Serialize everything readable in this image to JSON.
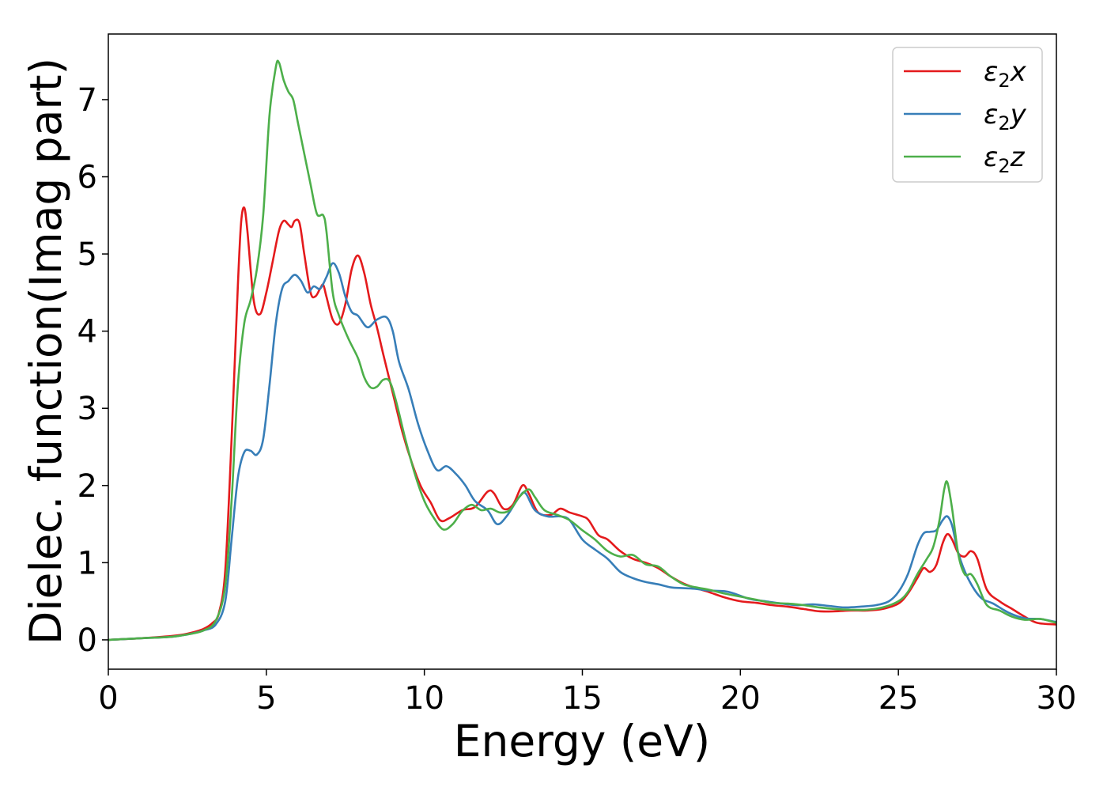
{
  "chart_data": {
    "type": "line",
    "xlabel": "Energy (eV)",
    "ylabel": "Dielec. function(Imag part)",
    "xlim": [
      0,
      30
    ],
    "ylim": [
      -0.38,
      7.85
    ],
    "xticks": [
      0,
      5,
      10,
      15,
      20,
      25,
      30
    ],
    "yticks": [
      0,
      1,
      2,
      3,
      4,
      5,
      6,
      7
    ],
    "grid": false,
    "legend_position": "top-right",
    "series": [
      {
        "name": "ε₂x",
        "legend": {
          "base": "ε",
          "sub": "2",
          "var": "x"
        },
        "color": "#e41a1c",
        "points": [
          [
            0,
            0
          ],
          [
            1,
            0.02
          ],
          [
            2,
            0.05
          ],
          [
            2.5,
            0.08
          ],
          [
            3,
            0.14
          ],
          [
            3.3,
            0.22
          ],
          [
            3.5,
            0.35
          ],
          [
            3.7,
            0.9
          ],
          [
            3.9,
            2.6
          ],
          [
            4.1,
            4.6
          ],
          [
            4.2,
            5.4
          ],
          [
            4.3,
            5.6
          ],
          [
            4.4,
            5.3
          ],
          [
            4.6,
            4.4
          ],
          [
            4.8,
            4.22
          ],
          [
            5.0,
            4.5
          ],
          [
            5.2,
            4.9
          ],
          [
            5.4,
            5.3
          ],
          [
            5.55,
            5.43
          ],
          [
            5.7,
            5.38
          ],
          [
            5.8,
            5.35
          ],
          [
            5.9,
            5.43
          ],
          [
            6.05,
            5.4
          ],
          [
            6.2,
            5.0
          ],
          [
            6.4,
            4.5
          ],
          [
            6.55,
            4.45
          ],
          [
            6.7,
            4.55
          ],
          [
            6.8,
            4.6
          ],
          [
            6.9,
            4.45
          ],
          [
            7.1,
            4.15
          ],
          [
            7.3,
            4.1
          ],
          [
            7.5,
            4.35
          ],
          [
            7.7,
            4.8
          ],
          [
            7.9,
            4.98
          ],
          [
            8.1,
            4.75
          ],
          [
            8.3,
            4.35
          ],
          [
            8.5,
            4.05
          ],
          [
            8.7,
            3.7
          ],
          [
            9.0,
            3.2
          ],
          [
            9.3,
            2.7
          ],
          [
            9.6,
            2.3
          ],
          [
            9.9,
            1.98
          ],
          [
            10.2,
            1.78
          ],
          [
            10.5,
            1.55
          ],
          [
            10.8,
            1.58
          ],
          [
            11.2,
            1.68
          ],
          [
            11.6,
            1.72
          ],
          [
            12.0,
            1.92
          ],
          [
            12.2,
            1.9
          ],
          [
            12.5,
            1.7
          ],
          [
            12.8,
            1.75
          ],
          [
            13.1,
            2.0
          ],
          [
            13.3,
            1.9
          ],
          [
            13.6,
            1.65
          ],
          [
            14.0,
            1.62
          ],
          [
            14.3,
            1.7
          ],
          [
            14.6,
            1.65
          ],
          [
            15.0,
            1.6
          ],
          [
            15.2,
            1.55
          ],
          [
            15.5,
            1.36
          ],
          [
            15.8,
            1.3
          ],
          [
            16.2,
            1.15
          ],
          [
            16.6,
            1.05
          ],
          [
            17.0,
            1.0
          ],
          [
            17.4,
            0.93
          ],
          [
            17.8,
            0.82
          ],
          [
            18.2,
            0.73
          ],
          [
            18.6,
            0.67
          ],
          [
            19.0,
            0.62
          ],
          [
            19.5,
            0.55
          ],
          [
            20.0,
            0.5
          ],
          [
            20.5,
            0.48
          ],
          [
            21.0,
            0.45
          ],
          [
            21.5,
            0.43
          ],
          [
            22.0,
            0.4
          ],
          [
            22.5,
            0.37
          ],
          [
            23.0,
            0.37
          ],
          [
            23.5,
            0.38
          ],
          [
            24.0,
            0.38
          ],
          [
            24.5,
            0.4
          ],
          [
            25.0,
            0.47
          ],
          [
            25.3,
            0.6
          ],
          [
            25.6,
            0.8
          ],
          [
            25.8,
            0.93
          ],
          [
            26.0,
            0.88
          ],
          [
            26.2,
            0.97
          ],
          [
            26.4,
            1.25
          ],
          [
            26.55,
            1.37
          ],
          [
            26.7,
            1.3
          ],
          [
            26.9,
            1.12
          ],
          [
            27.1,
            1.08
          ],
          [
            27.3,
            1.15
          ],
          [
            27.5,
            1.05
          ],
          [
            27.8,
            0.65
          ],
          [
            28.2,
            0.5
          ],
          [
            28.6,
            0.4
          ],
          [
            29.0,
            0.3
          ],
          [
            29.4,
            0.22
          ],
          [
            30.0,
            0.2
          ]
        ]
      },
      {
        "name": "ε₂y",
        "legend": {
          "base": "ε",
          "sub": "2",
          "var": "y"
        },
        "color": "#377eb8",
        "points": [
          [
            0,
            0
          ],
          [
            1,
            0.02
          ],
          [
            2,
            0.04
          ],
          [
            2.5,
            0.07
          ],
          [
            3,
            0.12
          ],
          [
            3.4,
            0.2
          ],
          [
            3.7,
            0.5
          ],
          [
            3.9,
            1.3
          ],
          [
            4.1,
            2.1
          ],
          [
            4.3,
            2.43
          ],
          [
            4.5,
            2.45
          ],
          [
            4.7,
            2.4
          ],
          [
            4.9,
            2.6
          ],
          [
            5.1,
            3.3
          ],
          [
            5.3,
            4.1
          ],
          [
            5.5,
            4.55
          ],
          [
            5.7,
            4.65
          ],
          [
            5.9,
            4.73
          ],
          [
            6.1,
            4.65
          ],
          [
            6.3,
            4.5
          ],
          [
            6.5,
            4.58
          ],
          [
            6.7,
            4.55
          ],
          [
            6.9,
            4.7
          ],
          [
            7.1,
            4.88
          ],
          [
            7.3,
            4.75
          ],
          [
            7.5,
            4.45
          ],
          [
            7.7,
            4.25
          ],
          [
            7.9,
            4.2
          ],
          [
            8.2,
            4.05
          ],
          [
            8.5,
            4.15
          ],
          [
            8.8,
            4.18
          ],
          [
            9.0,
            4.0
          ],
          [
            9.2,
            3.6
          ],
          [
            9.5,
            3.25
          ],
          [
            9.8,
            2.8
          ],
          [
            10.1,
            2.45
          ],
          [
            10.4,
            2.2
          ],
          [
            10.7,
            2.25
          ],
          [
            11.0,
            2.15
          ],
          [
            11.3,
            2.0
          ],
          [
            11.6,
            1.8
          ],
          [
            12.0,
            1.68
          ],
          [
            12.3,
            1.5
          ],
          [
            12.6,
            1.6
          ],
          [
            13.0,
            1.85
          ],
          [
            13.2,
            1.9
          ],
          [
            13.5,
            1.68
          ],
          [
            13.9,
            1.6
          ],
          [
            14.3,
            1.6
          ],
          [
            14.6,
            1.55
          ],
          [
            15.0,
            1.3
          ],
          [
            15.4,
            1.17
          ],
          [
            15.8,
            1.05
          ],
          [
            16.2,
            0.88
          ],
          [
            16.6,
            0.8
          ],
          [
            17.0,
            0.75
          ],
          [
            17.4,
            0.72
          ],
          [
            17.8,
            0.68
          ],
          [
            18.2,
            0.67
          ],
          [
            18.6,
            0.66
          ],
          [
            19.0,
            0.64
          ],
          [
            19.5,
            0.63
          ],
          [
            19.8,
            0.6
          ],
          [
            20.3,
            0.53
          ],
          [
            20.8,
            0.5
          ],
          [
            21.3,
            0.47
          ],
          [
            21.8,
            0.45
          ],
          [
            22.3,
            0.46
          ],
          [
            22.8,
            0.44
          ],
          [
            23.3,
            0.42
          ],
          [
            23.8,
            0.43
          ],
          [
            24.3,
            0.45
          ],
          [
            24.7,
            0.5
          ],
          [
            25.0,
            0.62
          ],
          [
            25.3,
            0.85
          ],
          [
            25.6,
            1.22
          ],
          [
            25.8,
            1.38
          ],
          [
            26.0,
            1.4
          ],
          [
            26.2,
            1.42
          ],
          [
            26.4,
            1.55
          ],
          [
            26.55,
            1.6
          ],
          [
            26.7,
            1.48
          ],
          [
            26.9,
            1.12
          ],
          [
            27.2,
            0.8
          ],
          [
            27.6,
            0.55
          ],
          [
            28.0,
            0.47
          ],
          [
            28.5,
            0.35
          ],
          [
            29.0,
            0.28
          ],
          [
            29.5,
            0.27
          ],
          [
            30.0,
            0.23
          ]
        ]
      },
      {
        "name": "ε₂z",
        "legend": {
          "base": "ε",
          "sub": "2",
          "var": "z"
        },
        "color": "#4daf4a",
        "points": [
          [
            0,
            0
          ],
          [
            1,
            0.02
          ],
          [
            2,
            0.04
          ],
          [
            2.5,
            0.07
          ],
          [
            3,
            0.12
          ],
          [
            3.4,
            0.25
          ],
          [
            3.7,
            0.7
          ],
          [
            3.9,
            1.8
          ],
          [
            4.1,
            3.3
          ],
          [
            4.3,
            4.1
          ],
          [
            4.5,
            4.4
          ],
          [
            4.7,
            4.8
          ],
          [
            4.9,
            5.5
          ],
          [
            5.1,
            6.8
          ],
          [
            5.3,
            7.42
          ],
          [
            5.4,
            7.48
          ],
          [
            5.55,
            7.25
          ],
          [
            5.7,
            7.1
          ],
          [
            5.85,
            7.0
          ],
          [
            6.0,
            6.7
          ],
          [
            6.2,
            6.3
          ],
          [
            6.4,
            5.9
          ],
          [
            6.6,
            5.52
          ],
          [
            6.8,
            5.5
          ],
          [
            6.9,
            5.3
          ],
          [
            7.1,
            4.5
          ],
          [
            7.3,
            4.2
          ],
          [
            7.6,
            3.9
          ],
          [
            7.9,
            3.65
          ],
          [
            8.1,
            3.4
          ],
          [
            8.3,
            3.27
          ],
          [
            8.5,
            3.28
          ],
          [
            8.7,
            3.37
          ],
          [
            8.9,
            3.35
          ],
          [
            9.1,
            3.1
          ],
          [
            9.4,
            2.6
          ],
          [
            9.7,
            2.15
          ],
          [
            10.0,
            1.8
          ],
          [
            10.3,
            1.58
          ],
          [
            10.6,
            1.43
          ],
          [
            10.9,
            1.5
          ],
          [
            11.2,
            1.67
          ],
          [
            11.5,
            1.75
          ],
          [
            11.8,
            1.68
          ],
          [
            12.1,
            1.7
          ],
          [
            12.4,
            1.65
          ],
          [
            12.7,
            1.68
          ],
          [
            13.0,
            1.85
          ],
          [
            13.3,
            1.95
          ],
          [
            13.5,
            1.85
          ],
          [
            13.8,
            1.68
          ],
          [
            14.2,
            1.62
          ],
          [
            14.6,
            1.55
          ],
          [
            15.0,
            1.42
          ],
          [
            15.4,
            1.3
          ],
          [
            15.8,
            1.15
          ],
          [
            16.2,
            1.08
          ],
          [
            16.6,
            1.1
          ],
          [
            17.0,
            0.98
          ],
          [
            17.4,
            0.95
          ],
          [
            17.8,
            0.82
          ],
          [
            18.2,
            0.72
          ],
          [
            18.6,
            0.68
          ],
          [
            19.0,
            0.65
          ],
          [
            19.5,
            0.6
          ],
          [
            20.0,
            0.56
          ],
          [
            20.5,
            0.52
          ],
          [
            21.0,
            0.48
          ],
          [
            21.5,
            0.47
          ],
          [
            22.0,
            0.45
          ],
          [
            22.5,
            0.42
          ],
          [
            23.0,
            0.4
          ],
          [
            23.5,
            0.39
          ],
          [
            24.0,
            0.39
          ],
          [
            24.5,
            0.42
          ],
          [
            25.0,
            0.5
          ],
          [
            25.3,
            0.62
          ],
          [
            25.6,
            0.85
          ],
          [
            25.9,
            1.05
          ],
          [
            26.1,
            1.2
          ],
          [
            26.3,
            1.55
          ],
          [
            26.45,
            1.95
          ],
          [
            26.55,
            2.04
          ],
          [
            26.7,
            1.7
          ],
          [
            26.9,
            1.1
          ],
          [
            27.1,
            0.85
          ],
          [
            27.3,
            0.85
          ],
          [
            27.5,
            0.72
          ],
          [
            27.8,
            0.45
          ],
          [
            28.2,
            0.38
          ],
          [
            28.6,
            0.3
          ],
          [
            29.0,
            0.26
          ],
          [
            29.5,
            0.27
          ],
          [
            30.0,
            0.22
          ]
        ]
      }
    ]
  }
}
